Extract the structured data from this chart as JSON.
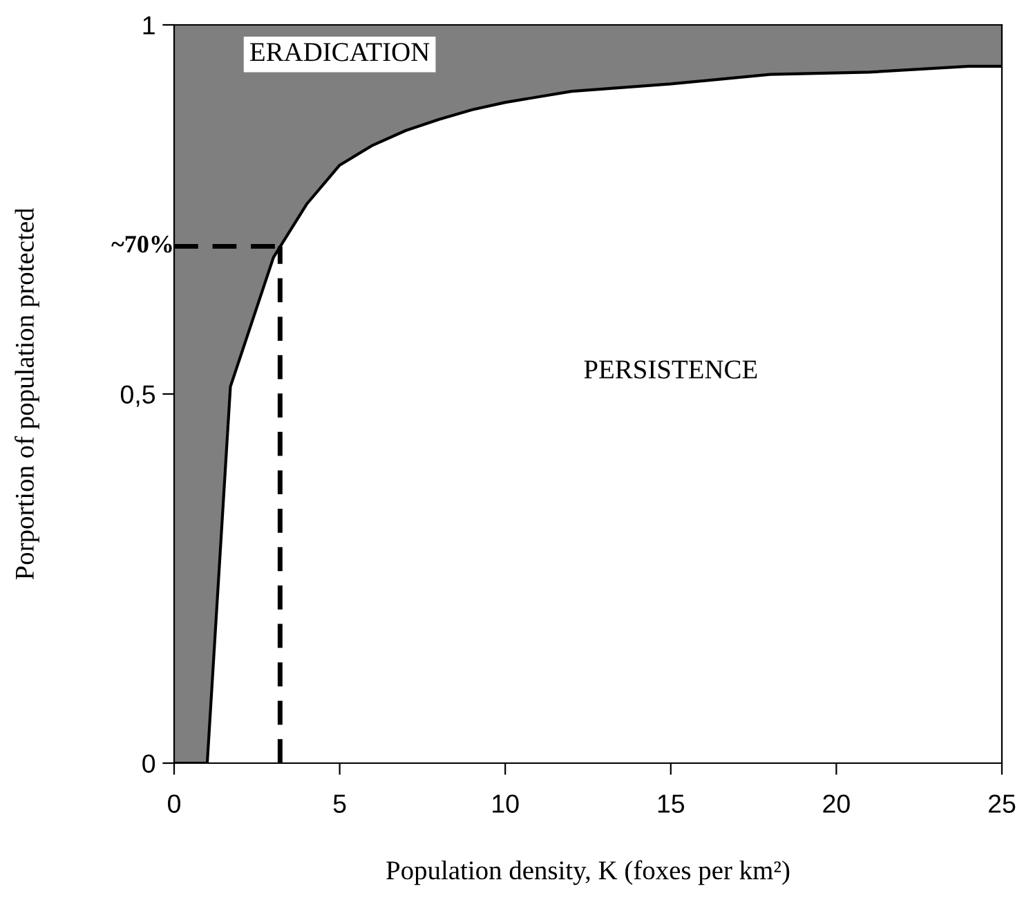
{
  "chart_data": {
    "type": "line",
    "xlabel": "Population density, K (foxes per km²)",
    "ylabel": "Porportion of population protected",
    "x": [
      0,
      1,
      1.7,
      3,
      4,
      5,
      6,
      7,
      8,
      9,
      10,
      12,
      15,
      18,
      21,
      24,
      25
    ],
    "series": [
      {
        "color": "#000000",
        "values": [
          0,
          0,
          0.51,
          0.685,
          0.757,
          0.81,
          0.837,
          0.857,
          0.872,
          0.885,
          0.895,
          0.91,
          0.92,
          0.933,
          0.936,
          0.944,
          0.944
        ],
        "lower": [
          0,
          0,
          0.51,
          0.685,
          0.757,
          0.81,
          0.837,
          0.857,
          0.872,
          0.885,
          0.895,
          0.91,
          0.92,
          0.933,
          0.936,
          0.944,
          0.944
        ],
        "upper": [
          1,
          1,
          1,
          1,
          1,
          1,
          1,
          1,
          1,
          1,
          1,
          1,
          1,
          1,
          1,
          1,
          1
        ]
      }
    ],
    "ref_lines": [
      {
        "axis": "y",
        "value": 0.7,
        "label": "~70%",
        "line_style": "dashed"
      },
      {
        "axis": "x",
        "value": 3.2,
        "label": null,
        "line_style": "dashed"
      }
    ],
    "annotations": [
      "ERADICATION",
      "PERSISTENCE"
    ],
    "xlim": [
      0,
      25
    ],
    "ylim": [
      0,
      1
    ],
    "xticks": [
      0,
      5,
      10,
      15,
      20,
      25
    ],
    "yticks": [
      0,
      {
        "value": 0.5,
        "label": "0,5"
      },
      1
    ],
    "grid": false,
    "legend": false
  }
}
